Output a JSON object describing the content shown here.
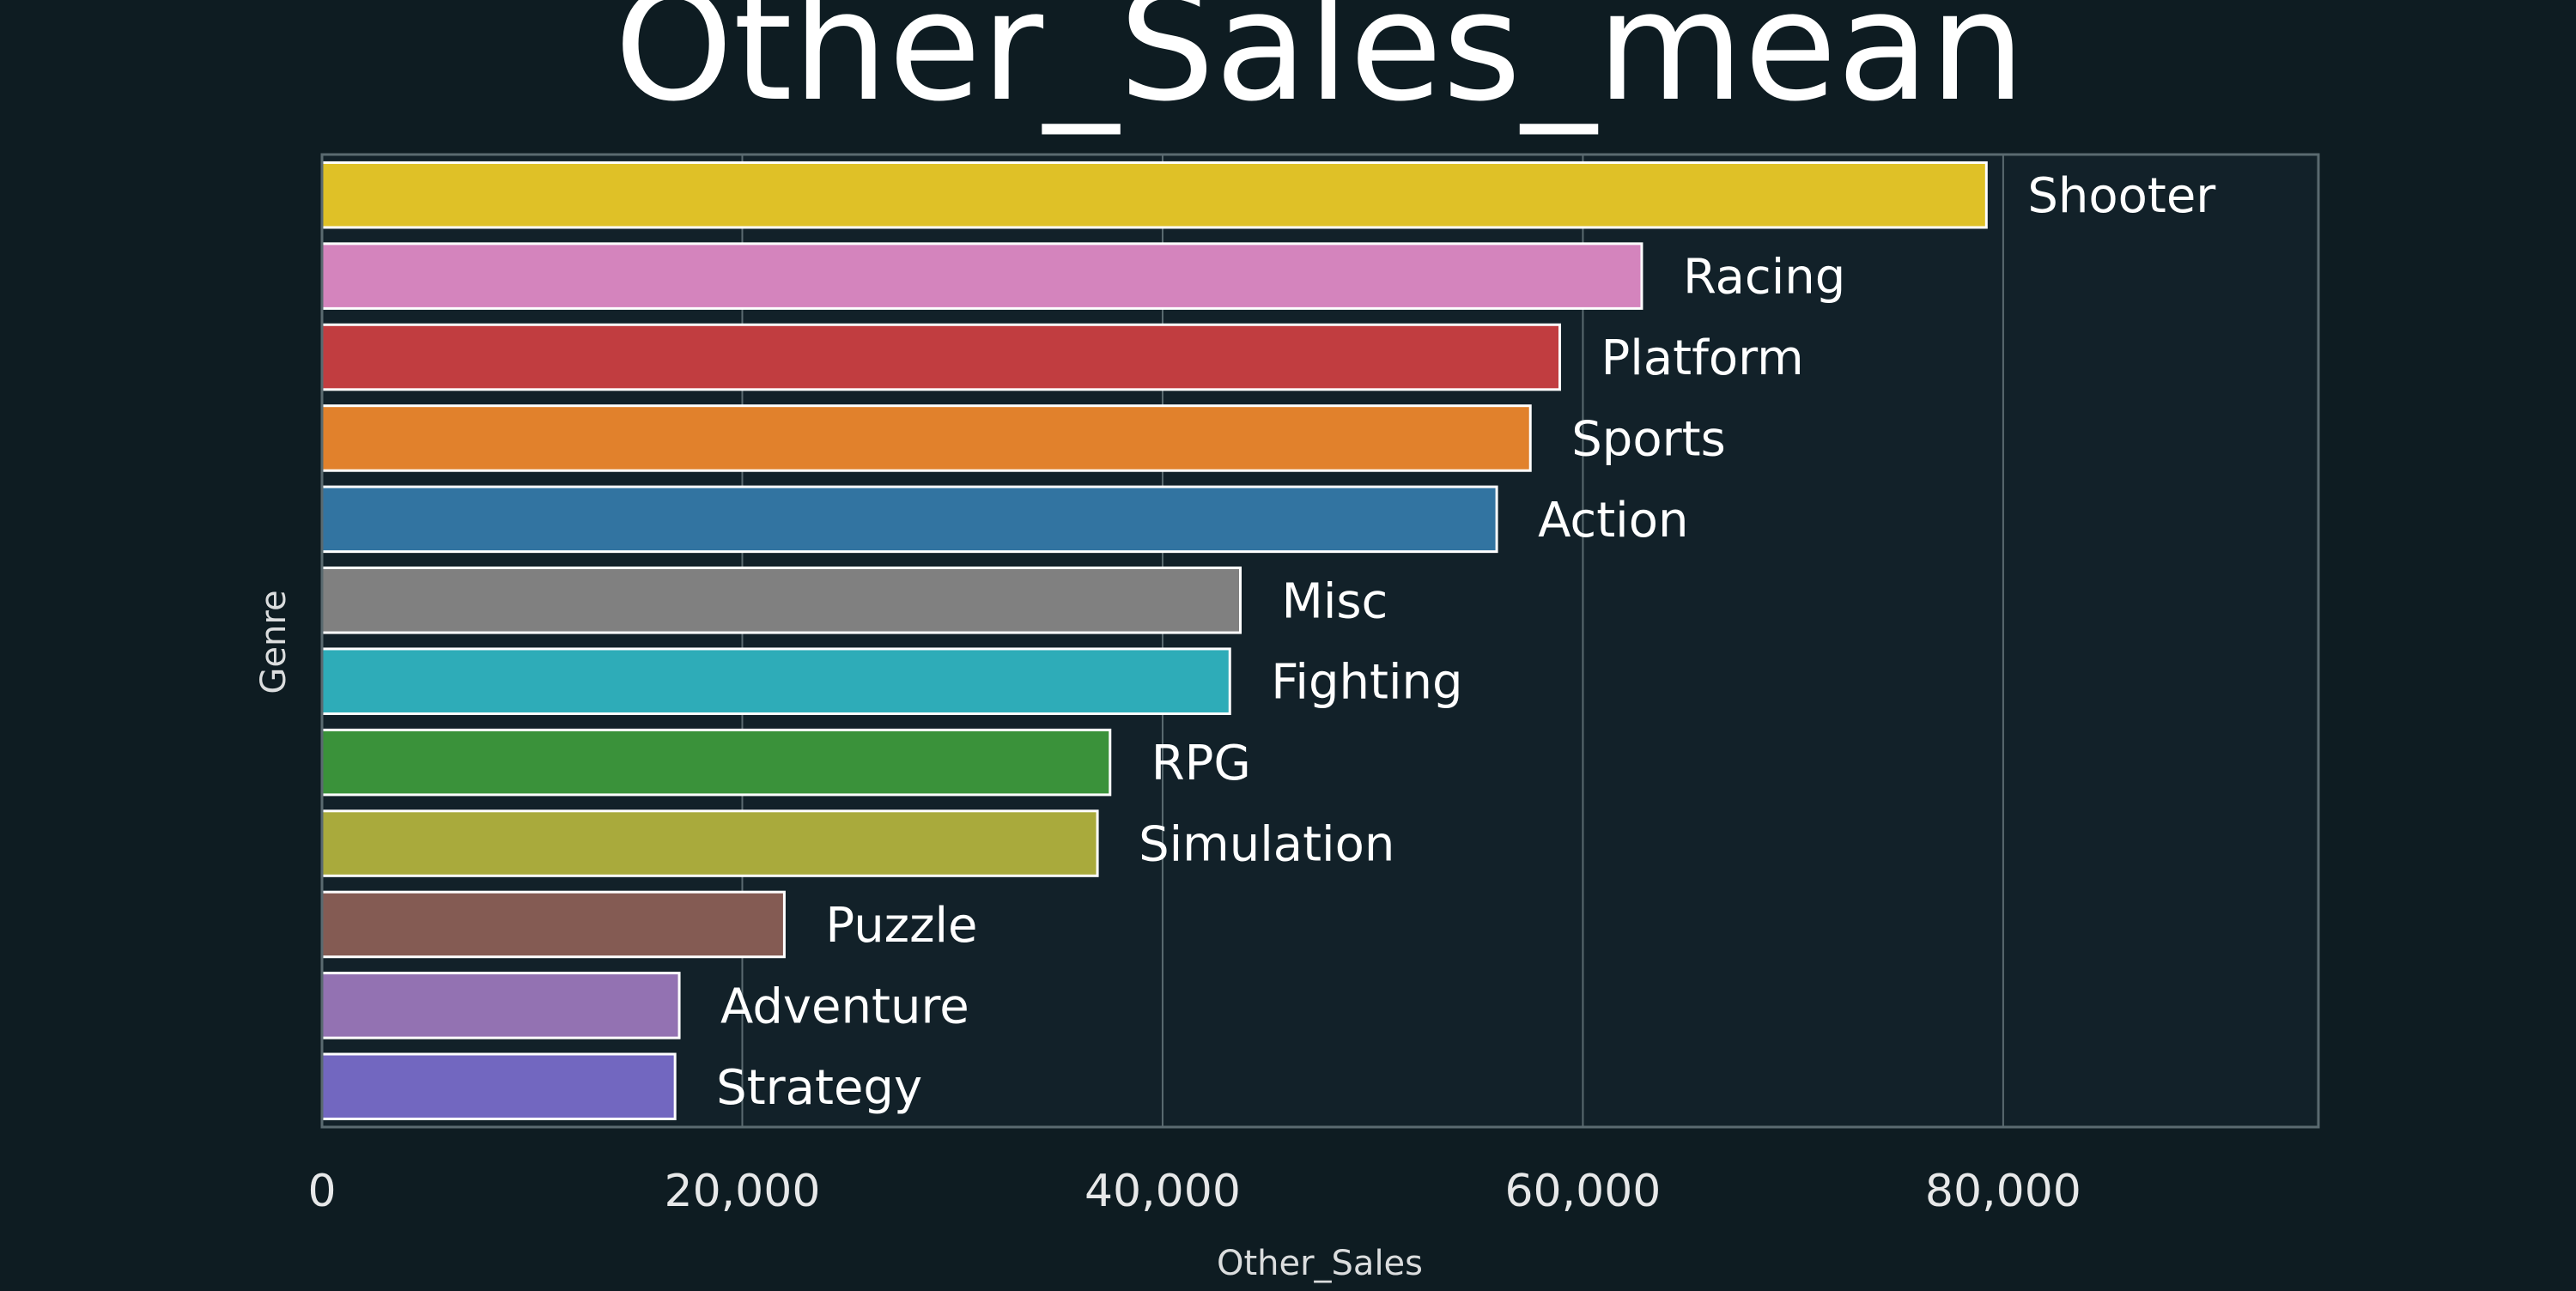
{
  "chart_data": {
    "type": "bar",
    "orientation": "horizontal",
    "title": "Other_Sales_mean",
    "xlabel": "Other_Sales",
    "ylabel": "Genre",
    "xlim": [
      0,
      95000
    ],
    "x_ticks": [
      0,
      20000,
      40000,
      60000,
      80000
    ],
    "x_tick_labels": [
      "0",
      "20,000",
      "40,000",
      "60,000",
      "80,000"
    ],
    "grid": "vertical",
    "categories": [
      "Shooter",
      "Racing",
      "Platform",
      "Sports",
      "Action",
      "Misc",
      "Fighting",
      "RPG",
      "Simulation",
      "Puzzle",
      "Adventure",
      "Strategy"
    ],
    "values": [
      79200,
      62800,
      58900,
      57500,
      55900,
      43700,
      43200,
      37500,
      36900,
      22000,
      17000,
      16800
    ],
    "colors": [
      "#dfc127",
      "#d484bd",
      "#c13d40",
      "#e1812c",
      "#3274a1",
      "#808080",
      "#2eacb8",
      "#3a923a",
      "#a9aa3c",
      "#845b53",
      "#9372b2",
      "#7267c0"
    ]
  },
  "theme": {
    "background": "#0e1c22",
    "plot_background": "#122129",
    "grid_color": "#5a6a70",
    "text_color": "#ffffff",
    "bar_edge": "#ffffff"
  }
}
